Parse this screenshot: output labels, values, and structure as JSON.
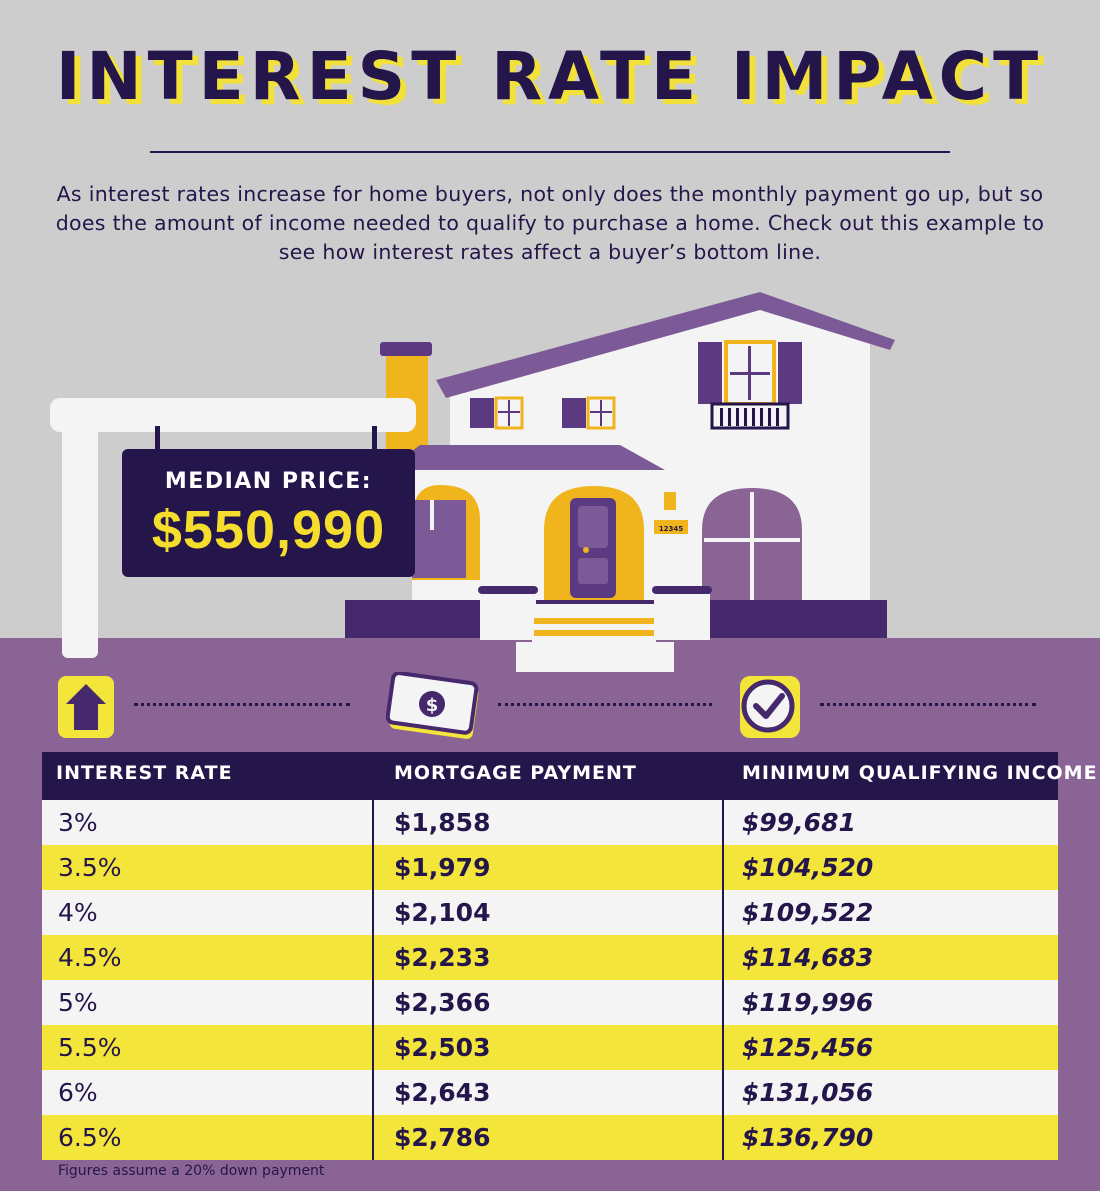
{
  "title": "INTEREST RATE IMPACT",
  "intro": "As interest rates increase for home buyers, not only does the monthly payment go up, but so does the amount of income needed to qualify to purchase a home. Check out this example to see how interest rates affect a buyer’s bottom line.",
  "sign": {
    "label": "MEDIAN PRICE:",
    "price": "$550,990"
  },
  "house_number": "12345",
  "icons": [
    "house-icon",
    "dollar-bill-icon",
    "checkmark-icon"
  ],
  "table": {
    "headers": [
      "INTEREST RATE",
      "MORTGAGE PAYMENT",
      "MINIMUM QUALIFYING INCOME"
    ],
    "rows": [
      {
        "rate": "3%",
        "payment": "$1,858",
        "income": "$99,681"
      },
      {
        "rate": "3.5%",
        "payment": "$1,979",
        "income": "$104,520"
      },
      {
        "rate": "4%",
        "payment": "$2,104",
        "income": "$109,522"
      },
      {
        "rate": "4.5%",
        "payment": "$2,233",
        "income": "$114,683"
      },
      {
        "rate": "5%",
        "payment": "$2,366",
        "income": "$119,996"
      },
      {
        "rate": "5.5%",
        "payment": "$2,503",
        "income": "$125,456"
      },
      {
        "rate": "6%",
        "payment": "$2,643",
        "income": "$131,056"
      },
      {
        "rate": "6.5%",
        "payment": "$2,786",
        "income": "$136,790"
      }
    ]
  },
  "footnote": "Figures assume a 20% down payment",
  "colors": {
    "navy": "#24154a",
    "yellow": "#f3e53a",
    "purple": "#8b6496",
    "light_purple": "#9b7bac",
    "gold": "#f0b41c",
    "gray": "#cdcdcd"
  }
}
